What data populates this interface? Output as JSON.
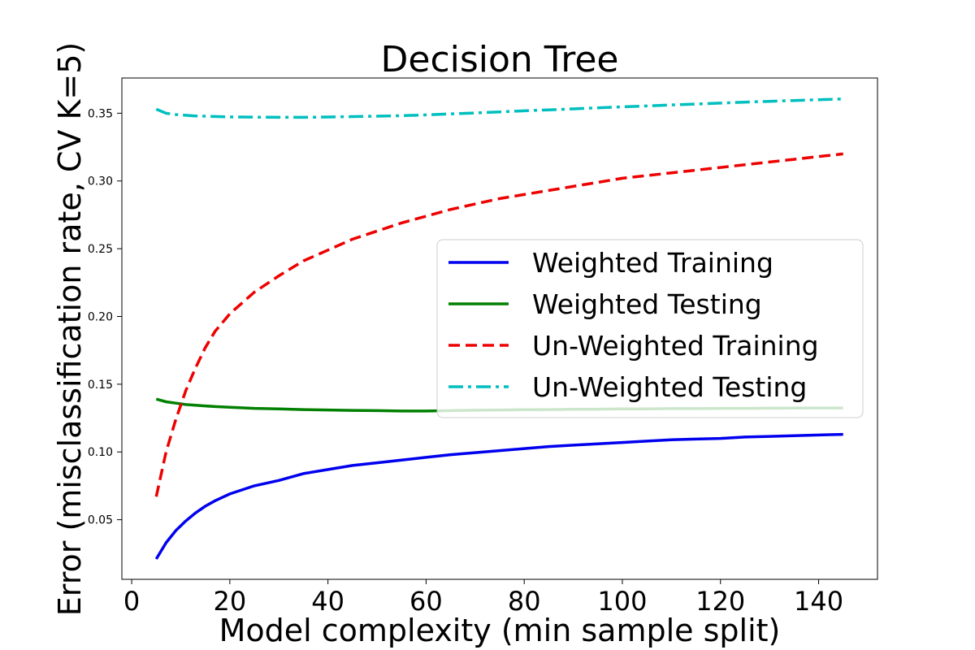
{
  "chart_data": {
    "type": "line",
    "title": "Decision Tree",
    "xlabel": "Model complexity (min sample split)",
    "ylabel": "Error (misclassification rate, CV K=5)",
    "xlim": [
      -2,
      152
    ],
    "ylim": [
      0.006,
      0.376
    ],
    "xticks": [
      0,
      20,
      40,
      60,
      80,
      100,
      120,
      140
    ],
    "yticks": [
      0.05,
      0.1,
      0.15,
      0.2,
      0.25,
      0.3,
      0.35
    ],
    "ytick_labels": [
      "0.05",
      "0.10",
      "0.15",
      "0.20",
      "0.25",
      "0.30",
      "0.35"
    ],
    "grid": false,
    "legend_position": "center-right",
    "x": [
      5,
      7,
      9,
      11,
      13,
      15,
      17,
      20,
      25,
      30,
      35,
      40,
      45,
      50,
      55,
      60,
      65,
      70,
      75,
      80,
      85,
      90,
      95,
      100,
      105,
      110,
      115,
      120,
      125,
      130,
      135,
      140,
      145
    ],
    "series": [
      {
        "name": "Weighted Training",
        "color": "#0000ee",
        "dash": "solid",
        "values": [
          0.021,
          0.033,
          0.042,
          0.049,
          0.055,
          0.06,
          0.064,
          0.069,
          0.075,
          0.079,
          0.084,
          0.087,
          0.09,
          0.092,
          0.094,
          0.096,
          0.098,
          0.0995,
          0.101,
          0.1025,
          0.104,
          0.105,
          0.106,
          0.107,
          0.108,
          0.109,
          0.1095,
          0.11,
          0.111,
          0.1115,
          0.112,
          0.1125,
          0.113
        ]
      },
      {
        "name": "Weighted Testing",
        "color": "#008000",
        "dash": "solid",
        "values": [
          0.139,
          0.137,
          0.136,
          0.135,
          0.1345,
          0.134,
          0.1335,
          0.133,
          0.1322,
          0.1318,
          0.1313,
          0.131,
          0.1307,
          0.1305,
          0.1302,
          0.1302,
          0.1305,
          0.1308,
          0.131,
          0.1312,
          0.1313,
          0.1315,
          0.1316,
          0.1318,
          0.1318,
          0.132,
          0.132,
          0.1322,
          0.1322,
          0.1323,
          0.1324,
          0.1325,
          0.1325
        ]
      },
      {
        "name": "Un-Weighted Training",
        "color": "#ee0000",
        "dash": "dashed",
        "values": [
          0.067,
          0.1,
          0.124,
          0.145,
          0.162,
          0.177,
          0.189,
          0.202,
          0.218,
          0.23,
          0.241,
          0.249,
          0.257,
          0.263,
          0.269,
          0.274,
          0.279,
          0.283,
          0.287,
          0.29,
          0.293,
          0.296,
          0.299,
          0.302,
          0.304,
          0.306,
          0.308,
          0.31,
          0.312,
          0.314,
          0.316,
          0.318,
          0.32
        ]
      },
      {
        "name": "Un-Weighted Testing",
        "color": "#00bfbf",
        "dash": "dashdot",
        "values": [
          0.353,
          0.35,
          0.349,
          0.3485,
          0.348,
          0.3478,
          0.3476,
          0.3473,
          0.3471,
          0.347,
          0.347,
          0.3472,
          0.3475,
          0.3478,
          0.3482,
          0.3488,
          0.3495,
          0.3502,
          0.351,
          0.3518,
          0.3525,
          0.3532,
          0.354,
          0.3547,
          0.3554,
          0.3561,
          0.3568,
          0.3575,
          0.3582,
          0.3588,
          0.3594,
          0.36,
          0.3605
        ]
      }
    ]
  }
}
